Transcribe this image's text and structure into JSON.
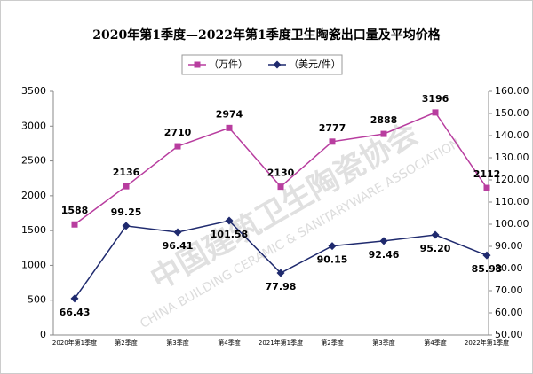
{
  "chart_data": {
    "type": "line",
    "title": "2020年第1季度—2022年第1季度卫生陶瓷出口量及平均价格",
    "categories": [
      "2020年第1季度",
      "第2季度",
      "第3季度",
      "第4季度",
      "2021年第1季度",
      "第2季度",
      "第3季度",
      "第4季度",
      "2022年第1季度"
    ],
    "series": [
      {
        "name": "（万件）",
        "color": "#b83d9f",
        "marker": "square",
        "values": [
          1588,
          2136,
          2710,
          2974,
          2130,
          2777,
          2888,
          3196,
          2112
        ]
      },
      {
        "name": "（美元/件）",
        "color": "#1f2a6e",
        "marker": "diamond",
        "axis": "y2",
        "values": [
          66.43,
          99.25,
          96.41,
          101.58,
          77.98,
          90.15,
          92.46,
          95.2,
          85.93
        ],
        "value_labels": [
          "66.43",
          "99.25",
          "96.41",
          "101.58",
          "77.98",
          "90.15",
          "92.46",
          "95.20",
          "85.93"
        ]
      }
    ],
    "ylim": [
      0,
      3500
    ],
    "yticks": [
      0,
      500,
      1000,
      1500,
      2000,
      2500,
      3000,
      3500
    ],
    "y2lim": [
      50,
      160
    ],
    "y2ticks": [
      {
        "value": 50,
        "label": "50.00"
      },
      {
        "value": 60,
        "label": "60.00"
      },
      {
        "value": 70,
        "label": "70.00"
      },
      {
        "value": 80,
        "label": "80.00"
      },
      {
        "value": 90,
        "label": "90.00"
      },
      {
        "value": 100,
        "label": "100.00"
      },
      {
        "value": 110,
        "label": "110.00"
      },
      {
        "value": 120,
        "label": "120.00"
      },
      {
        "value": 130,
        "label": "130.00"
      },
      {
        "value": 140,
        "label": "140.00"
      },
      {
        "value": 150,
        "label": "150.00"
      },
      {
        "value": 160,
        "label": "160.00"
      }
    ],
    "legend": "top",
    "watermark": {
      "cn": "中国建筑卫生陶瓷协会",
      "en": "CHINA BUILDING CERAMIC & SANITARYWARE ASSOCIATION"
    }
  }
}
